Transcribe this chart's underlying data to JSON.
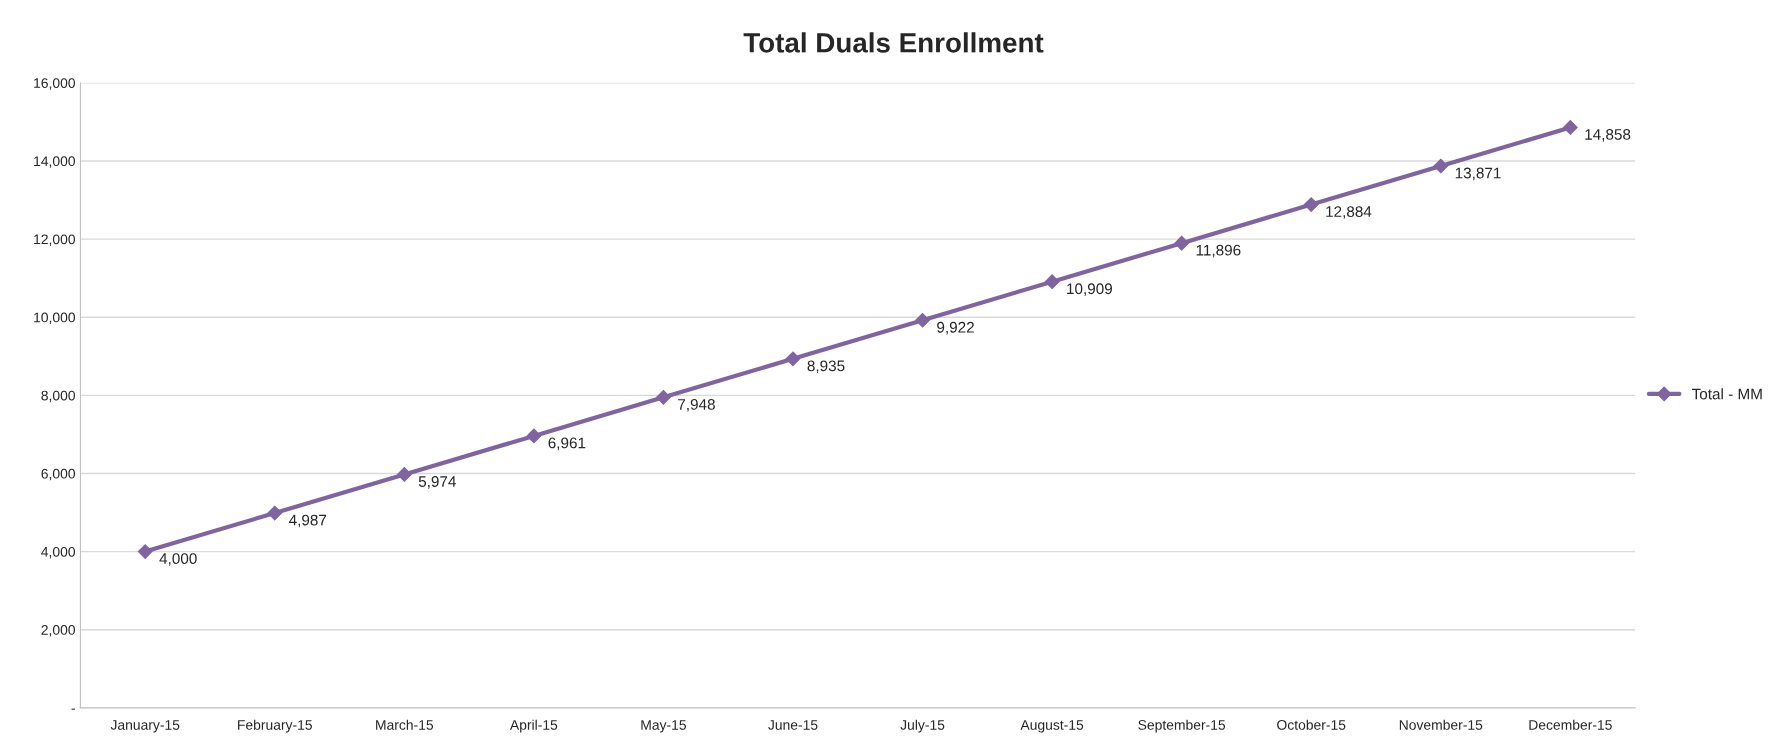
{
  "chart_data": {
    "type": "line",
    "title": "Total Duals Enrollment",
    "categories": [
      "January-15",
      "February-15",
      "March-15",
      "April-15",
      "May-15",
      "June-15",
      "July-15",
      "August-15",
      "September-15",
      "October-15",
      "November-15",
      "December-15"
    ],
    "series": [
      {
        "name": "Total - MM",
        "color": "#8064a2",
        "values": [
          4000,
          4987,
          5974,
          6961,
          7948,
          8935,
          9922,
          10909,
          11896,
          12884,
          13871,
          14858
        ],
        "value_labels": [
          "4,000",
          "4,987",
          "5,974",
          "6,961",
          "7,948",
          "8,935",
          "9,922",
          "10,909",
          "11,896",
          "12,884",
          "13,871",
          "14,858"
        ]
      }
    ],
    "ylim": [
      0,
      16000
    ],
    "yticks": [
      {
        "value": 0,
        "label": "-"
      },
      {
        "value": 2000,
        "label": "2,000"
      },
      {
        "value": 4000,
        "label": "4,000"
      },
      {
        "value": 6000,
        "label": "6,000"
      },
      {
        "value": 8000,
        "label": "8,000"
      },
      {
        "value": 10000,
        "label": "10,000"
      },
      {
        "value": 12000,
        "label": "12,000"
      },
      {
        "value": 14000,
        "label": "14,000"
      },
      {
        "value": 16000,
        "label": "16,000"
      }
    ],
    "grid": "y",
    "legend": "right",
    "marker": "diamond",
    "line_style": "solid"
  }
}
